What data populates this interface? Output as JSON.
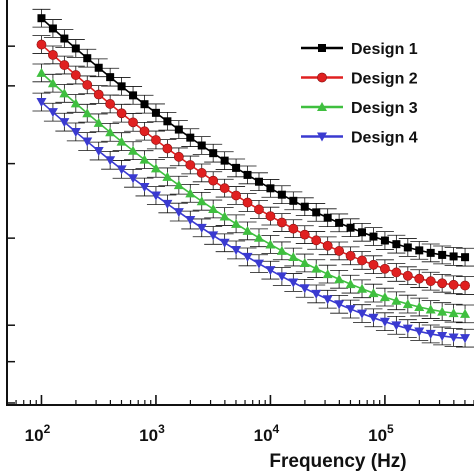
{
  "chart_data": {
    "type": "line",
    "title": "",
    "xlabel": "Frequency (Hz)",
    "ylabel": "",
    "x_scale": "log",
    "xlim": [
      50,
      600000
    ],
    "ylim": [
      0,
      1
    ],
    "x_ticks": [
      {
        "base": "10",
        "exp": "2",
        "value": 100
      },
      {
        "base": "10",
        "exp": "3",
        "value": 1000
      },
      {
        "base": "10",
        "exp": "4",
        "value": 10000
      },
      {
        "base": "10",
        "exp": "5",
        "value": 100000
      }
    ],
    "grid": false,
    "error_bars": true,
    "legend_position": "top-right",
    "x": [
      100,
      125.9,
      158.5,
      199.5,
      251.2,
      316.2,
      398.1,
      501.2,
      631,
      794.3,
      1000,
      1258.9,
      1584.9,
      1995.3,
      2511.9,
      3162.3,
      3981.1,
      5011.9,
      6309.6,
      7943.3,
      10000,
      12589.3,
      15848.9,
      19952.6,
      25118.9,
      31622.8,
      39810.7,
      50118.7,
      63095.7,
      79432.8,
      100000,
      125892.5,
      158489.3,
      199526.2,
      251188.6,
      316227.8,
      398107.2,
      501187.2
    ],
    "series": [
      {
        "name": "Design 1",
        "color": "#000000",
        "marker": "square",
        "start": 0.955,
        "end": 0.365
      },
      {
        "name": "Design 2",
        "color": "#e02020",
        "marker": "circle",
        "start": 0.89,
        "end": 0.295
      },
      {
        "name": "Design 3",
        "color": "#3fbf3f",
        "marker": "triangle-up",
        "start": 0.82,
        "end": 0.225
      },
      {
        "name": "Design 4",
        "color": "#3a3ad0",
        "marker": "triangle-down",
        "start": 0.748,
        "end": 0.165
      }
    ]
  },
  "icons": {
    "legend_markers": [
      "square-marker-icon",
      "circle-marker-icon",
      "triangle-up-marker-icon",
      "triangle-down-marker-icon"
    ]
  }
}
